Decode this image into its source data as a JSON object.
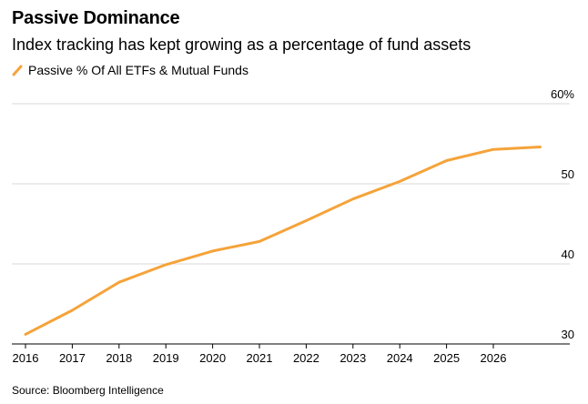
{
  "chart_data": {
    "type": "line",
    "title": "Passive Dominance",
    "subtitle": "Index tracking has kept growing as a percentage of fund assets",
    "source": "Source: Bloomberg Intelligence",
    "x": [
      2016,
      2017,
      2018,
      2019,
      2020,
      2021,
      2022,
      2023,
      2024,
      2025,
      2026,
      2027
    ],
    "x_tick_labels": [
      "2016",
      "2017",
      "2018",
      "2019",
      "2020",
      "2021",
      "2022",
      "2023",
      "2024",
      "2025",
      "2026"
    ],
    "xlim": [
      2016,
      2027
    ],
    "ylim": [
      30,
      60
    ],
    "y_ticks": [
      {
        "value": 30,
        "label": "30"
      },
      {
        "value": 40,
        "label": "40"
      },
      {
        "value": 50,
        "label": "50"
      },
      {
        "value": 60,
        "label": "60%"
      }
    ],
    "series": [
      {
        "name": "Passive % Of All ETFs & Mutual Funds",
        "color": "#f5a33a",
        "values": [
          31.2,
          34.2,
          37.7,
          39.9,
          41.6,
          42.8,
          45.4,
          48.1,
          50.3,
          52.9,
          54.3,
          54.6
        ]
      }
    ],
    "grid": true,
    "y_axis_position": "right",
    "legend": "top-left"
  },
  "colors": {
    "gridline": "#d9d9d9",
    "baseline": "#000000",
    "text": "#000000"
  }
}
